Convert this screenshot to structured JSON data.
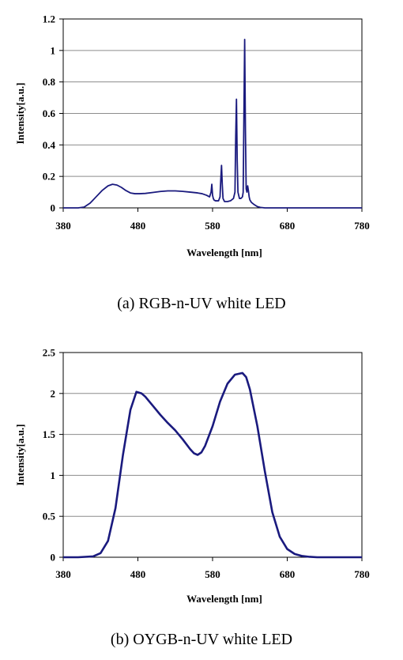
{
  "chart_data": [
    {
      "type": "line",
      "xlabel": "Wavelength [nm]",
      "ylabel": "Intensity[a.u.]",
      "caption": "(a) RGB-n-UV white LED",
      "xlim": [
        380,
        780
      ],
      "ylim": [
        0,
        1.2
      ],
      "xticks": [
        "380",
        "480",
        "580",
        "680",
        "780"
      ],
      "yticks": [
        "0",
        "0.2",
        "0.4",
        "0.6",
        "0.8",
        "1",
        "1.2"
      ],
      "grid": "horizontal",
      "line_color": "#1a1a7e",
      "series": [
        {
          "x": [
            380,
            400,
            408,
            416,
            424,
            432,
            440,
            446,
            452,
            458,
            464,
            470,
            476,
            482,
            490,
            500,
            510,
            520,
            530,
            540,
            550,
            560,
            566,
            572,
            576,
            578,
            579,
            580,
            581,
            582,
            584,
            588,
            590,
            591,
            592,
            593,
            594,
            596,
            600,
            604,
            608,
            610,
            611,
            612,
            613,
            614,
            616,
            618,
            620,
            621,
            622,
            623,
            624,
            625,
            626,
            627,
            628,
            629,
            630,
            632,
            636,
            640,
            644,
            650,
            700,
            780
          ],
          "y": [
            0,
            0,
            0.005,
            0.03,
            0.07,
            0.11,
            0.14,
            0.15,
            0.145,
            0.13,
            0.11,
            0.095,
            0.09,
            0.09,
            0.092,
            0.098,
            0.104,
            0.108,
            0.108,
            0.105,
            0.1,
            0.095,
            0.09,
            0.08,
            0.07,
            0.1,
            0.15,
            0.08,
            0.06,
            0.05,
            0.045,
            0.045,
            0.07,
            0.18,
            0.27,
            0.15,
            0.06,
            0.04,
            0.04,
            0.045,
            0.06,
            0.1,
            0.45,
            0.69,
            0.3,
            0.1,
            0.06,
            0.06,
            0.07,
            0.1,
            0.6,
            1.07,
            0.5,
            0.12,
            0.1,
            0.14,
            0.11,
            0.07,
            0.05,
            0.035,
            0.02,
            0.008,
            0.003,
            0,
            0,
            0
          ]
        }
      ]
    },
    {
      "type": "line",
      "xlabel": "Wavelength [nm]",
      "ylabel": "Intensity[a.u.]",
      "caption": "(b) OYGB-n-UV white LED",
      "xlim": [
        380,
        780
      ],
      "ylim": [
        0,
        2.5
      ],
      "xticks": [
        "380",
        "480",
        "580",
        "680",
        "780"
      ],
      "yticks": [
        "0",
        "0.5",
        "1",
        "1.5",
        "2",
        "2.5"
      ],
      "grid": "horizontal",
      "line_color": "#1a1a7e",
      "series": [
        {
          "x": [
            380,
            400,
            420,
            430,
            440,
            450,
            460,
            470,
            478,
            485,
            490,
            500,
            510,
            520,
            530,
            540,
            550,
            555,
            560,
            565,
            570,
            580,
            590,
            600,
            610,
            620,
            625,
            630,
            640,
            650,
            660,
            670,
            680,
            690,
            700,
            710,
            720,
            740,
            760,
            780
          ],
          "y": [
            0,
            0,
            0.01,
            0.05,
            0.2,
            0.6,
            1.25,
            1.8,
            2.02,
            2.0,
            1.96,
            1.85,
            1.74,
            1.64,
            1.55,
            1.44,
            1.32,
            1.27,
            1.25,
            1.28,
            1.36,
            1.6,
            1.9,
            2.12,
            2.23,
            2.25,
            2.2,
            2.05,
            1.6,
            1.05,
            0.55,
            0.25,
            0.1,
            0.04,
            0.015,
            0.005,
            0,
            0,
            0,
            0
          ]
        }
      ]
    }
  ]
}
